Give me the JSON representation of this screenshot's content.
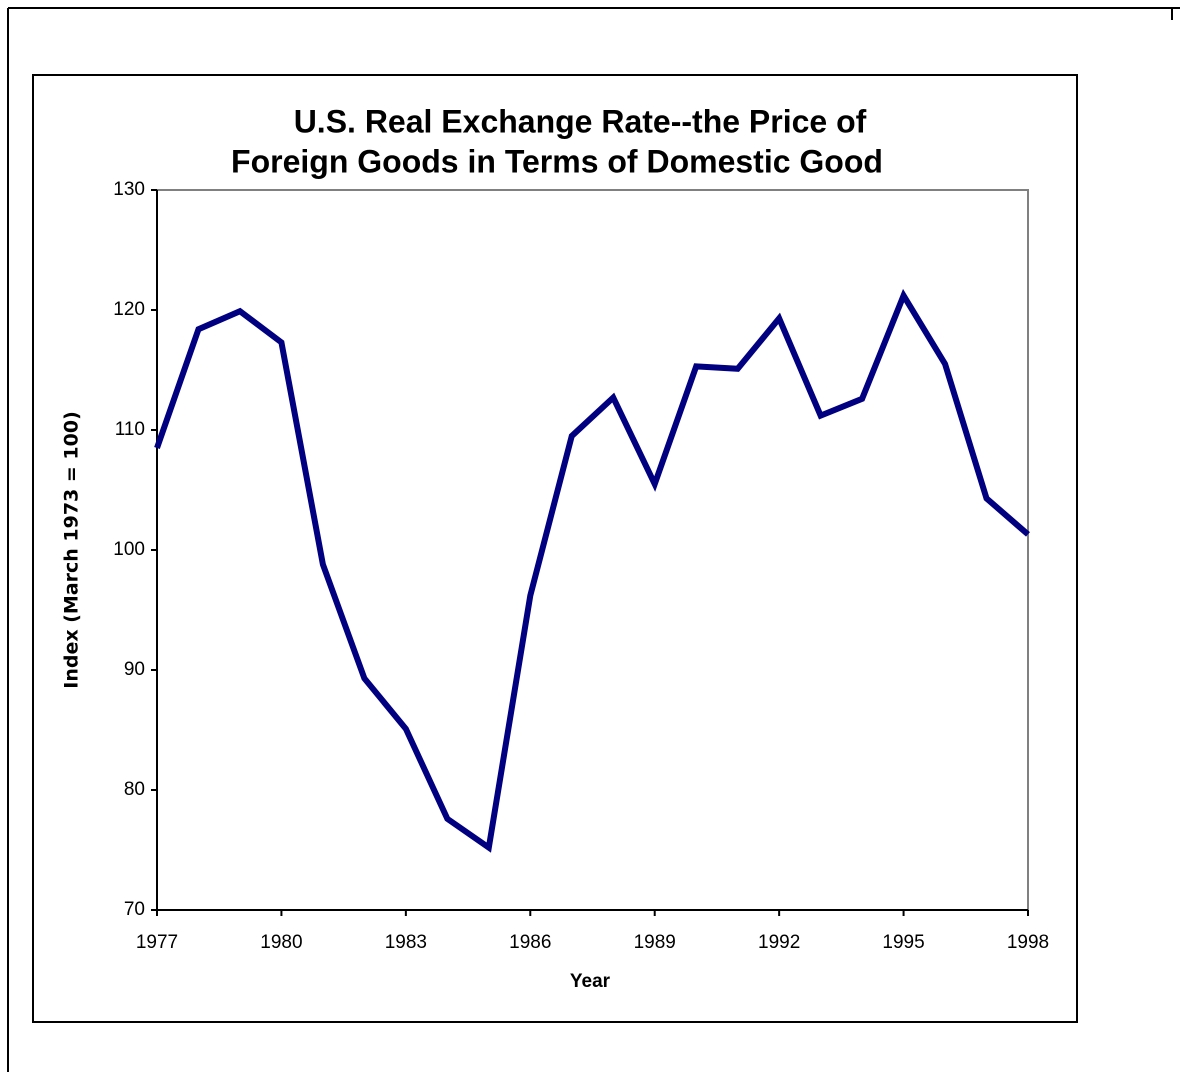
{
  "chart_data": {
    "type": "line",
    "title": [
      "U.S. Real Exchange Rate--the Price of",
      "Foreign Goods in Terms of Domestic Good"
    ],
    "x_label": "Year",
    "y_label": "Index (March 1973 = 100)",
    "x": [
      1977,
      1978,
      1979,
      1980,
      1981,
      1982,
      1983,
      1984,
      1985,
      1986,
      1987,
      1988,
      1989,
      1990,
      1991,
      1992,
      1993,
      1994,
      1995,
      1996,
      1997,
      1998
    ],
    "series": [
      {
        "color": "#000080",
        "values": [
          108.5,
          118.4,
          119.9,
          117.3,
          98.8,
          89.3,
          85.1,
          77.6,
          75.2,
          96.2,
          109.5,
          112.7,
          105.5,
          115.3,
          115.1,
          119.3,
          111.2,
          112.6,
          121.2,
          115.5,
          104.3,
          101.3
        ]
      }
    ],
    "xlim": [
      1977,
      1998
    ],
    "xticks": [
      1977,
      1980,
      1983,
      1986,
      1989,
      1992,
      1995,
      1998
    ],
    "ylim": [
      70,
      130
    ],
    "yticks": [
      70,
      80,
      90,
      100,
      110,
      120,
      130
    ],
    "grid": false
  }
}
